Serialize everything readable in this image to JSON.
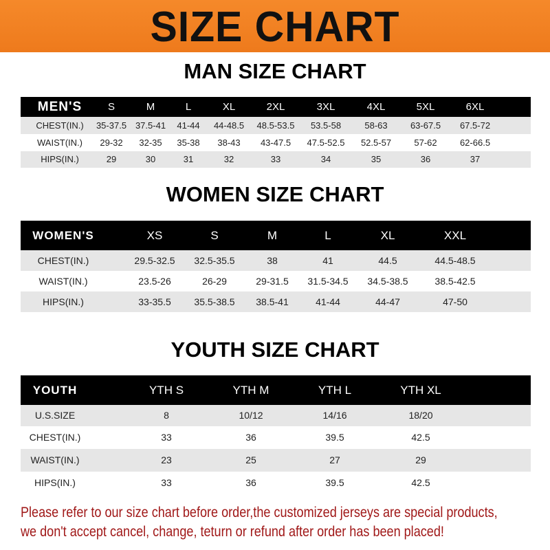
{
  "banner_title": "SIZE CHART",
  "colors": {
    "banner": "#f28325",
    "header_row": "#000000",
    "note_text": "#a01818"
  },
  "tables": [
    {
      "title": "MAN SIZE CHART",
      "header": [
        "MEN'S",
        "S",
        "M",
        "L",
        "XL",
        "2XL",
        "3XL",
        "4XL",
        "5XL",
        "6XL"
      ],
      "rows": [
        [
          "CHEST(IN.)",
          "35-37.5",
          "37.5-41",
          "41-44",
          "44-48.5",
          "48.5-53.5",
          "53.5-58",
          "58-63",
          "63-67.5",
          "67.5-72"
        ],
        [
          "WAIST(IN.)",
          "29-32",
          "32-35",
          "35-38",
          "38-43",
          "43-47.5",
          "47.5-52.5",
          "52.5-57",
          "57-62",
          "62-66.5"
        ],
        [
          "HIPS(IN.)",
          "29",
          "30",
          "31",
          "32",
          "33",
          "34",
          "35",
          "36",
          "37"
        ]
      ]
    },
    {
      "title": "WOMEN SIZE CHART",
      "header": [
        "WOMEN'S",
        "XS",
        "S",
        "M",
        "L",
        "XL",
        "XXL"
      ],
      "rows": [
        [
          "CHEST(IN.)",
          "29.5-32.5",
          "32.5-35.5",
          "38",
          "41",
          "44.5",
          "44.5-48.5"
        ],
        [
          "WAIST(IN.)",
          "23.5-26",
          "26-29",
          "29-31.5",
          "31.5-34.5",
          "34.5-38.5",
          "38.5-42.5"
        ],
        [
          "HIPS(IN.)",
          "33-35.5",
          "35.5-38.5",
          "38.5-41",
          "41-44",
          "44-47",
          "47-50"
        ]
      ]
    },
    {
      "title": "YOUTH SIZE CHART",
      "header": [
        "YOUTH",
        "YTH S",
        "YTH M",
        "YTH L",
        "YTH XL"
      ],
      "rows": [
        [
          "U.S.SIZE",
          "8",
          "10/12",
          "14/16",
          "18/20"
        ],
        [
          "CHEST(IN.)",
          "33",
          "36",
          "39.5",
          "42.5"
        ],
        [
          "WAIST(IN.)",
          "23",
          "25",
          "27",
          "29"
        ],
        [
          "HIPS(IN.)",
          "33",
          "36",
          "39.5",
          "42.5"
        ]
      ]
    }
  ],
  "note": [
    "Please refer to our size chart before order,the customized jerseys are special products,",
    "we don't accept cancel, change, teturn or refund after order has been placed!"
  ]
}
